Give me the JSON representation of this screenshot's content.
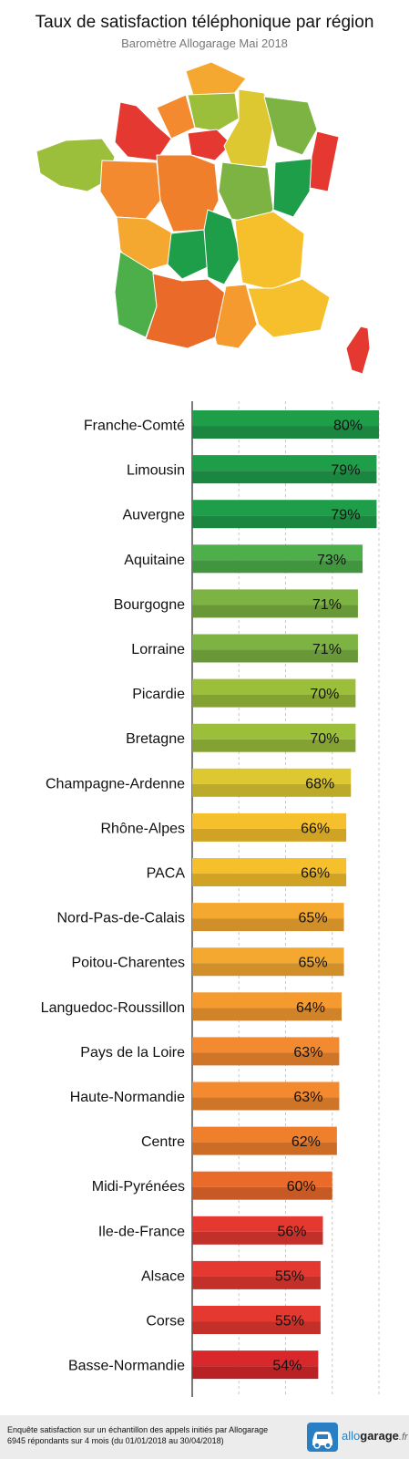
{
  "header": {
    "title": "Taux de satisfaction téléphonique par région",
    "subtitle": "Baromètre Allogarage Mai 2018"
  },
  "chart_data": {
    "type": "bar",
    "orientation": "horizontal",
    "title": "Taux de satisfaction téléphonique par région",
    "subtitle": "Baromètre Allogarage Mai 2018",
    "xlim": [
      0,
      80
    ],
    "grid": true,
    "categories": [
      "Franche-Comté",
      "Limousin",
      "Auvergne",
      "Aquitaine",
      "Bourgogne",
      "Lorraine",
      "Picardie",
      "Bretagne",
      "Champagne-Ardenne",
      "Rhône-Alpes",
      "PACA",
      "Nord-Pas-de-Calais",
      "Poitou-Charentes",
      "Languedoc-Roussillon",
      "Pays de la Loire",
      "Haute-Normandie",
      "Centre",
      "Midi-Pyrénées",
      "Ile-de-France",
      "Alsace",
      "Corse",
      "Basse-Normandie"
    ],
    "values": [
      80,
      79,
      79,
      73,
      71,
      71,
      70,
      70,
      68,
      66,
      66,
      65,
      65,
      64,
      63,
      63,
      62,
      60,
      56,
      55,
      55,
      54
    ],
    "labels": [
      "80%",
      "79%",
      "79%",
      "73%",
      "71%",
      "71%",
      "70%",
      "70%",
      "68%",
      "66%",
      "66%",
      "65%",
      "65%",
      "64%",
      "63%",
      "63%",
      "62%",
      "60%",
      "56%",
      "55%",
      "55%",
      "54%"
    ],
    "colors": [
      "#1f9e4a",
      "#1f9e4a",
      "#1f9e4a",
      "#4caf4a",
      "#7cb342",
      "#7cb342",
      "#9bbf3a",
      "#9bbf3a",
      "#ddc832",
      "#f6c02c",
      "#f6c02c",
      "#f5a830",
      "#f5a830",
      "#f59a2f",
      "#f48a2f",
      "#f48a2f",
      "#f07f2c",
      "#ea6a2a",
      "#e43830",
      "#e43830",
      "#e43830",
      "#d9282c"
    ]
  },
  "map": {
    "icon": "france-regions-map-icon",
    "colors": {
      "green_dark": "#1f9e4a",
      "green": "#7cb342",
      "yellow": "#f6c02c",
      "orange": "#f48a2f",
      "red": "#e43830"
    }
  },
  "footer": {
    "note_line1": "Enquête satisfaction sur un échantillon des appels initiés par Allogarage",
    "note_line2": "6945 répondants sur 4 mois (du 01/01/2018 au 30/04/2018)",
    "logo_brand": "allo",
    "logo_bold": "garage",
    "logo_tld": ".fr",
    "logo_icon": "car-icon"
  }
}
